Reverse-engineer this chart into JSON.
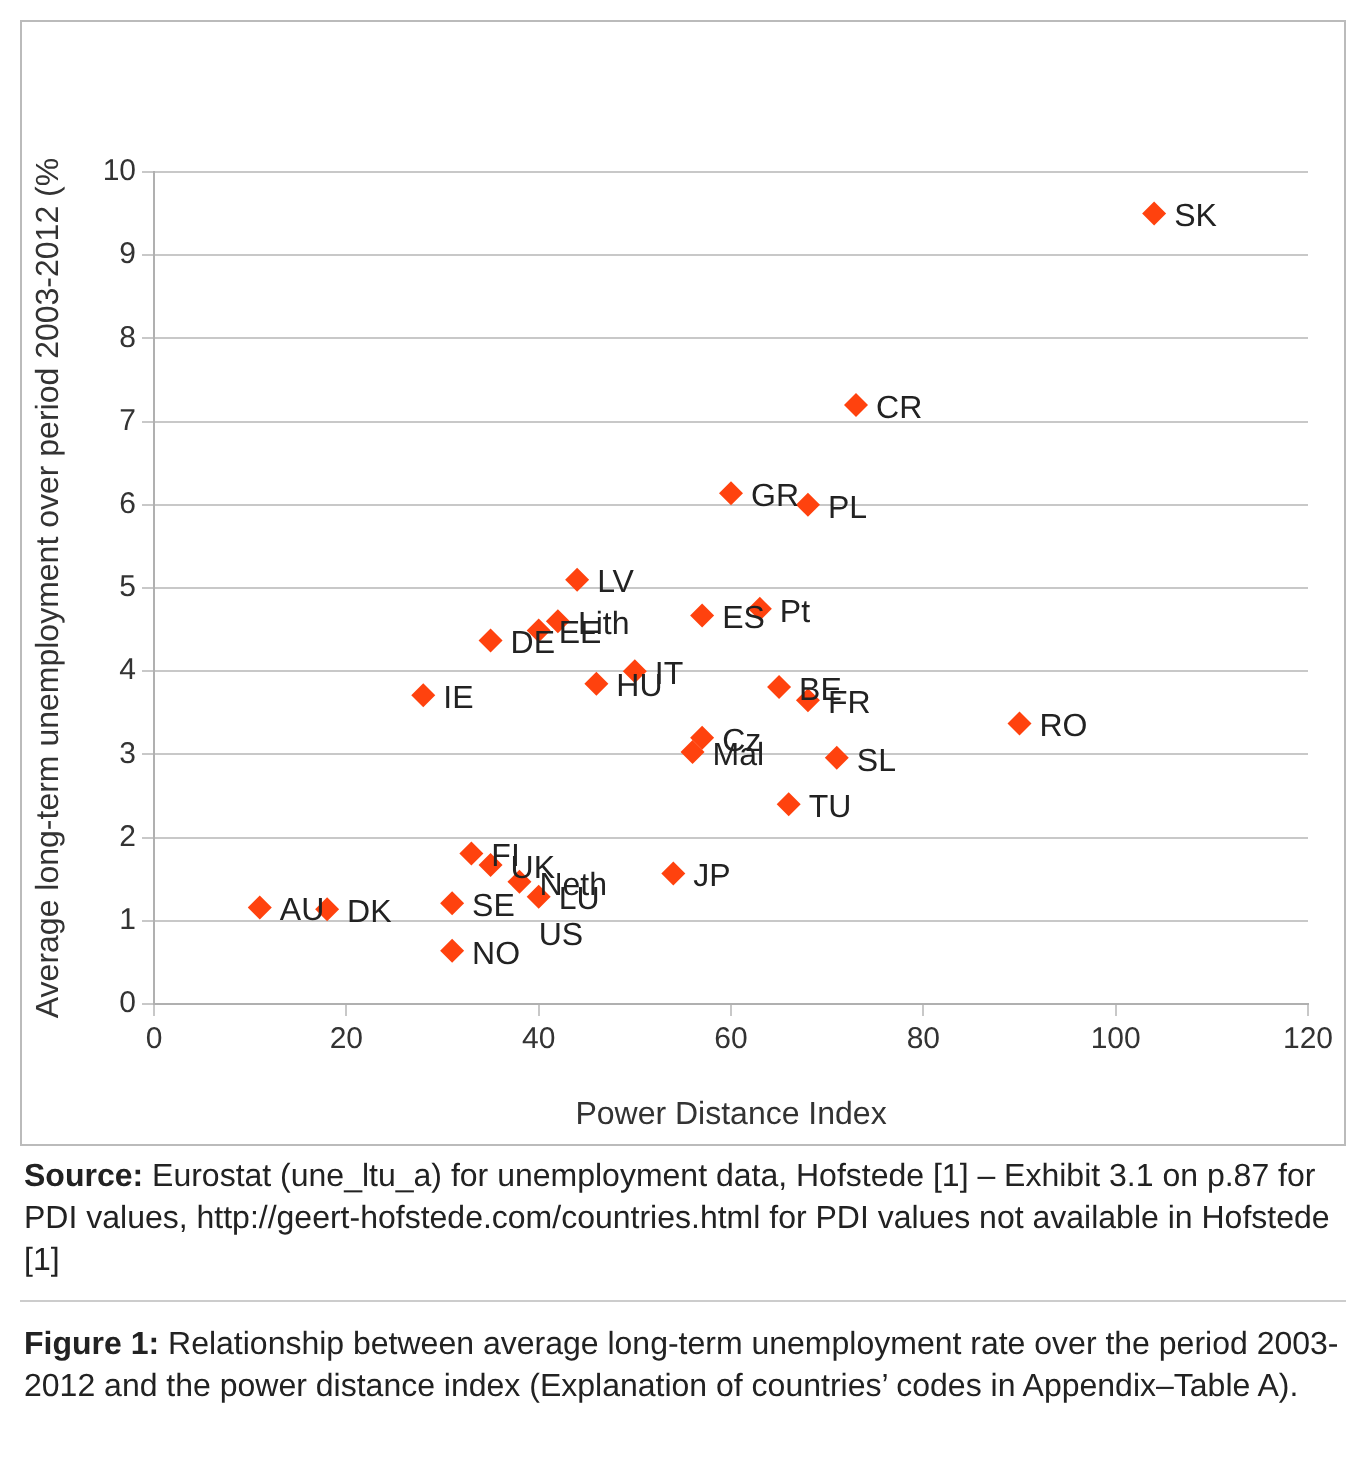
{
  "chart_data": {
    "type": "scatter",
    "xlabel": "Power Distance Index",
    "ylabel": "Average long-term unemployment over period 2003-2012 (%",
    "x": [
      104,
      73,
      60,
      68,
      44,
      40,
      42,
      35,
      28,
      46,
      50,
      57,
      63,
      65,
      68,
      57,
      56,
      71,
      66,
      33,
      35,
      38,
      40,
      54,
      31,
      31,
      11,
      18,
      90
    ],
    "series": [
      {
        "color": "#ff420e",
        "values": [
          9.5,
          7.2,
          6.14,
          6.0,
          5.1,
          4.49,
          4.6,
          4.37,
          3.71,
          3.85,
          4.0,
          4.67,
          4.75,
          3.81,
          3.65,
          3.2,
          3.03,
          2.96,
          2.4,
          1.81,
          1.67,
          1.47,
          1.29,
          1.57,
          1.21,
          0.64,
          1.16,
          1.14,
          3.37
        ]
      }
    ],
    "marker": "diamond",
    "grid": "y",
    "legend": false,
    "xlim": [
      0,
      120
    ],
    "xticks": [
      0,
      20,
      40,
      60,
      80,
      100,
      120
    ],
    "ylim": [
      0,
      10
    ],
    "yticks": [
      0,
      1,
      2,
      3,
      4,
      5,
      6,
      7,
      8,
      9,
      10
    ],
    "annotations": [
      {
        "text": "SK",
        "x": 104,
        "y": 9.5
      },
      {
        "text": "CR",
        "x": 73,
        "y": 7.2
      },
      {
        "text": "GR",
        "x": 60,
        "y": 6.14
      },
      {
        "text": "PL",
        "x": 68,
        "y": 6.0
      },
      {
        "text": "LV",
        "x": 44,
        "y": 5.1
      },
      {
        "text": "EE",
        "x": 40,
        "y": 4.49
      },
      {
        "text": "Lith",
        "x": 42,
        "y": 4.6
      },
      {
        "text": "DE",
        "x": 35,
        "y": 4.37
      },
      {
        "text": "IE",
        "x": 28,
        "y": 3.71
      },
      {
        "text": "HU",
        "x": 46,
        "y": 3.85
      },
      {
        "text": "IT",
        "x": 50,
        "y": 4.0
      },
      {
        "text": "ES",
        "x": 57,
        "y": 4.67
      },
      {
        "text": "Pt",
        "x": 63,
        "y": 4.75
      },
      {
        "text": "BE",
        "x": 65,
        "y": 3.81
      },
      {
        "text": "FR",
        "x": 68,
        "y": 3.65
      },
      {
        "text": "Cz",
        "x": 57,
        "y": 3.2
      },
      {
        "text": "Mal",
        "x": 56,
        "y": 3.03
      },
      {
        "text": "SL",
        "x": 71,
        "y": 2.96
      },
      {
        "text": "TU",
        "x": 66,
        "y": 2.4
      },
      {
        "text": "FI",
        "x": 33,
        "y": 1.81
      },
      {
        "text": "UK",
        "x": 35,
        "y": 1.67
      },
      {
        "text": "Neth",
        "x": 38,
        "y": 1.47
      },
      {
        "text": "LU",
        "x": 40,
        "y": 1.29
      },
      {
        "text": "US",
        "x": 40,
        "y": 1.29
      },
      {
        "text": "JP",
        "x": 54,
        "y": 1.57
      },
      {
        "text": "SE",
        "x": 31,
        "y": 1.21
      },
      {
        "text": "NO",
        "x": 31,
        "y": 0.64
      },
      {
        "text": "AU",
        "x": 11,
        "y": 1.16
      },
      {
        "text": "DK",
        "x": 18,
        "y": 1.14
      },
      {
        "text": "RO",
        "x": 90,
        "y": 3.37
      },
      "Source: Eurostat (une_ltu_a) for unemployment data, Hofstede [1] – Exhibit 3.1 on p.87 for PDI values, http://geert-hofstede.com/countries.html for PDI values not available in Hofstede [1]",
      "Figure 1: Relationship between average long-term unemployment rate over the period 2003-2012 and the power distance index (Explanation of countries’ codes in Appendix–Table A)."
    ]
  }
}
